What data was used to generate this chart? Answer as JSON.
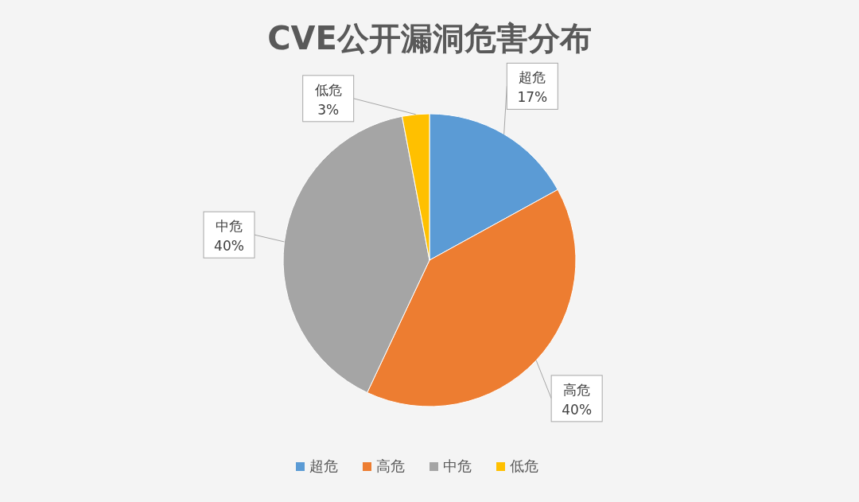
{
  "chart_data": {
    "type": "pie",
    "title": "CVE公开漏洞危害分布",
    "categories": [
      "超危",
      "高危",
      "中危",
      "低危"
    ],
    "values": [
      17,
      40,
      40,
      3
    ],
    "colors": [
      "#5b9bd5",
      "#ed7d31",
      "#a5a5a5",
      "#ffc000"
    ],
    "value_labels": [
      "17%",
      "40%",
      "40%",
      "3%"
    ],
    "legend": "bottom"
  }
}
